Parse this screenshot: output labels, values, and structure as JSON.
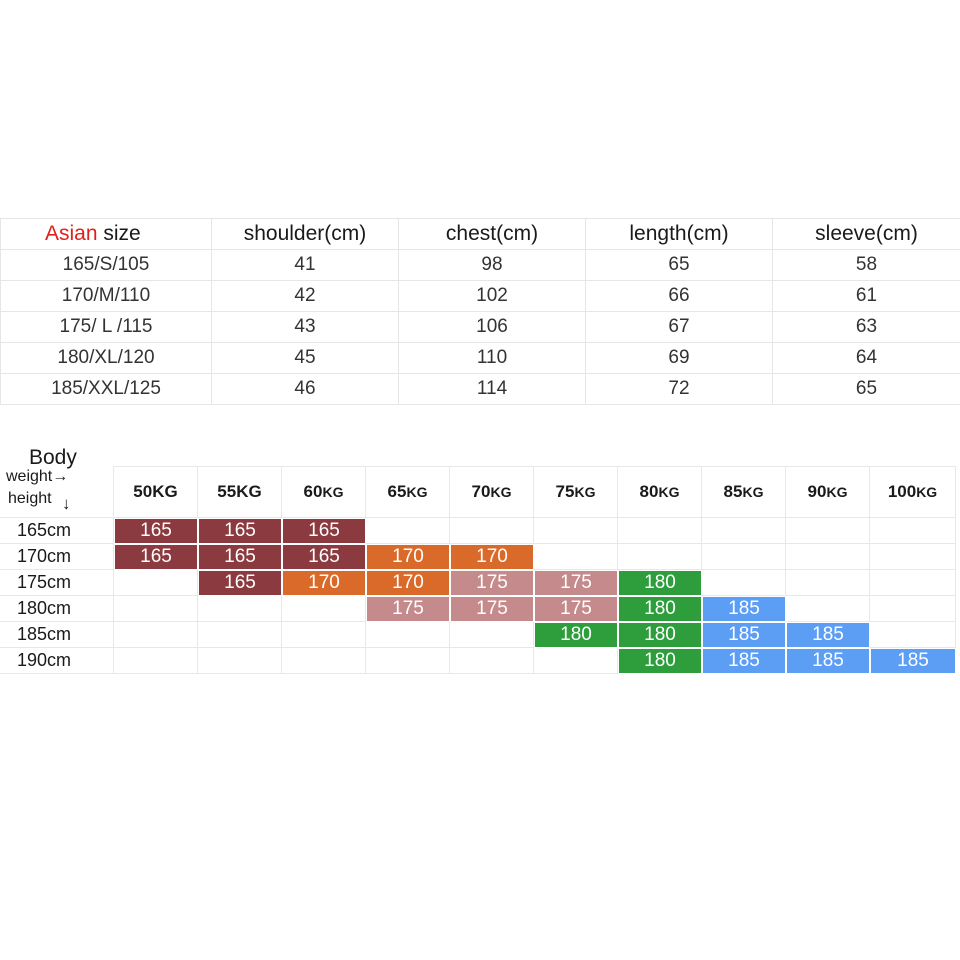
{
  "size_table": {
    "header": {
      "size_prefix": "Asian",
      "size_suffix": " size",
      "columns": [
        "shoulder(cm)",
        "chest(cm)",
        "length(cm)",
        "sleeve(cm)"
      ]
    },
    "rows": [
      [
        "165/S/105",
        "41",
        "98",
        "65",
        "58"
      ],
      [
        "170/M/110",
        "42",
        "102",
        "66",
        "61"
      ],
      [
        "175/ L /115",
        "43",
        "106",
        "67",
        "63"
      ],
      [
        "180/XL/120",
        "45",
        "110",
        "69",
        "64"
      ],
      [
        "185/XXL/125",
        "46",
        "114",
        "72",
        "65"
      ]
    ]
  },
  "body_chart": {
    "corner": {
      "body": "Body",
      "weight": "weight→",
      "height": "height",
      "down_arrow": "↓"
    },
    "weights": [
      {
        "num": "50KG",
        "small": ""
      },
      {
        "num": "55KG",
        "small": ""
      },
      {
        "num": "60",
        "small": "KG"
      },
      {
        "num": "65",
        "small": "KG"
      },
      {
        "num": "70",
        "small": "KG"
      },
      {
        "num": "75",
        "small": "KG"
      },
      {
        "num": "80",
        "small": "KG"
      },
      {
        "num": "85",
        "small": "KG"
      },
      {
        "num": "90",
        "small": "KG"
      },
      {
        "num": "100",
        "small": "KG"
      }
    ],
    "heights": [
      "165cm",
      "170cm",
      "175cm",
      "180cm",
      "185cm",
      "190cm"
    ],
    "colors": {
      "165": "#8b3a3f",
      "170": "#d96a2a",
      "175": "#c48a8c",
      "180": "#2e9e3c",
      "185": "#5d9ef5"
    },
    "grid": [
      [
        "165",
        "165",
        "165",
        "",
        "",
        "",
        "",
        "",
        "",
        ""
      ],
      [
        "165",
        "165",
        "165",
        "170",
        "170",
        "",
        "",
        "",
        "",
        ""
      ],
      [
        "",
        "165",
        "170",
        "170",
        "175",
        "175",
        "180",
        "",
        "",
        ""
      ],
      [
        "",
        "",
        "",
        "175",
        "175",
        "175",
        "180",
        "185",
        "",
        ""
      ],
      [
        "",
        "",
        "",
        "",
        "",
        "180",
        "180",
        "185",
        "185",
        ""
      ],
      [
        "",
        "",
        "",
        "",
        "",
        "",
        "180",
        "185",
        "185",
        "185"
      ]
    ]
  }
}
